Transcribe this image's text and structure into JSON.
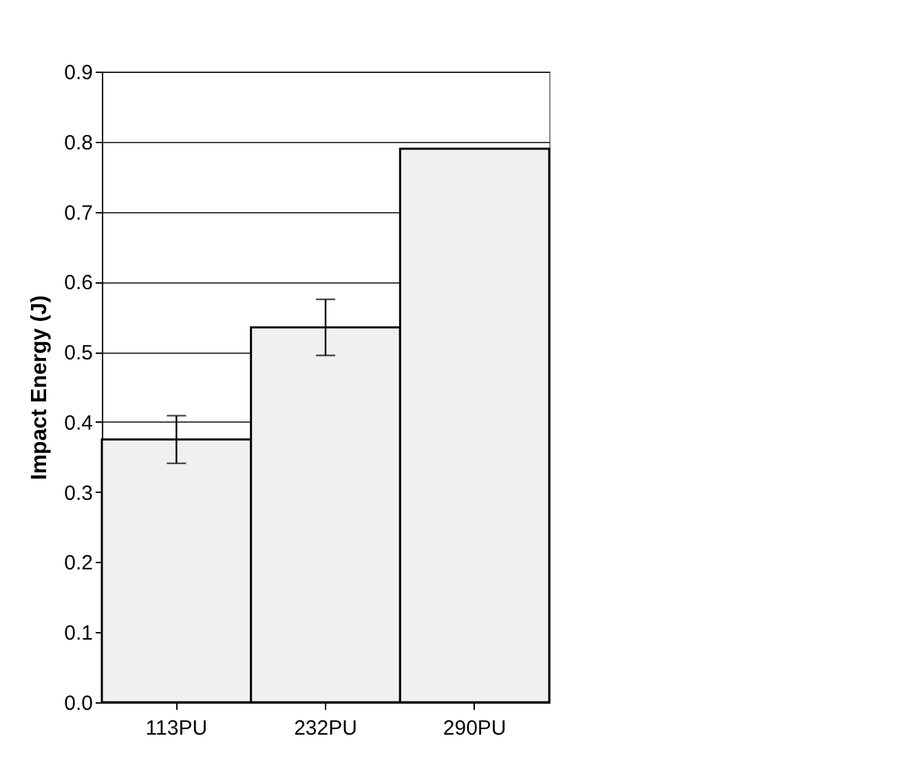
{
  "chart_data": {
    "type": "bar",
    "ylabel": "Impact Energy (J)",
    "categories": [
      "113PU",
      "232PU",
      "290PU"
    ],
    "values": [
      0.375,
      0.535,
      0.79
    ],
    "errors": [
      0.034,
      0.04,
      null
    ],
    "color": "#f0f0f0",
    "ylim": [
      0,
      0.9
    ],
    "yticks": [
      {
        "value": 0,
        "label": "0.0"
      },
      0.1,
      0.2,
      0.3,
      0.4,
      0.5,
      0.6,
      0.7,
      0.8,
      0.9
    ],
    "grid": "y"
  }
}
